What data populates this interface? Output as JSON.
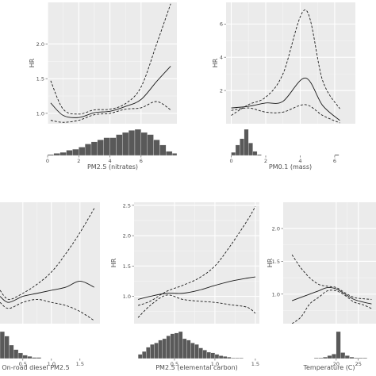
{
  "chart_data": [
    {
      "type": "line",
      "xlabel": "PM2.5 (nitrates)",
      "ylabel": "HR",
      "xlim": [
        0,
        8.3
      ],
      "ylim": [
        0.85,
        2.6
      ],
      "xticks": [
        {
          "v": 0,
          "label": "0"
        },
        {
          "v": 2,
          "label": "2"
        },
        {
          "v": 4,
          "label": "4"
        },
        {
          "v": 6,
          "label": "6"
        }
      ],
      "yticks": [
        {
          "v": 1.0,
          "label": "1.0"
        },
        {
          "v": 1.5,
          "label": "1.5"
        },
        {
          "v": 2.0,
          "label": "2.0"
        }
      ],
      "grid": true,
      "series": [
        {
          "style": "solid",
          "x": [
            0.2,
            1,
            2,
            3,
            4,
            5,
            6,
            7,
            7.9
          ],
          "y": [
            1.15,
            0.97,
            0.94,
            1.01,
            1.03,
            1.1,
            1.2,
            1.46,
            1.68
          ]
        },
        {
          "style": "dashed",
          "x": [
            0.2,
            1,
            2,
            3,
            4,
            5,
            6,
            7,
            7.9
          ],
          "y": [
            1.47,
            1.06,
            0.99,
            1.05,
            1.06,
            1.14,
            1.38,
            2.0,
            2.58
          ]
        },
        {
          "style": "dashed",
          "x": [
            0.2,
            1,
            2,
            3,
            4,
            5,
            6,
            7,
            7.9
          ],
          "y": [
            0.9,
            0.87,
            0.9,
            0.98,
            1.0,
            1.06,
            1.08,
            1.17,
            1.05
          ]
        }
      ],
      "histogram": {
        "x0": 0,
        "bin": 0.4,
        "counts": [
          1,
          2,
          3,
          5,
          6,
          8,
          11,
          13,
          15,
          17,
          17,
          20,
          22,
          24,
          25,
          22,
          20,
          15,
          10,
          4,
          2
        ]
      }
    },
    {
      "type": "line",
      "xlabel": "PM0.1 (mass)",
      "ylabel": "HR",
      "xlim": [
        -0.3,
        7.2
      ],
      "ylim": [
        0,
        7.3
      ],
      "xticks": [
        {
          "v": 0,
          "label": "0"
        },
        {
          "v": 2,
          "label": "2"
        },
        {
          "v": 4,
          "label": "4"
        },
        {
          "v": 6,
          "label": "6"
        }
      ],
      "yticks": [
        {
          "v": 2,
          "label": "2"
        },
        {
          "v": 4,
          "label": "4"
        },
        {
          "v": 6,
          "label": "6"
        }
      ],
      "grid": true,
      "series": [
        {
          "style": "solid",
          "x": [
            0,
            1,
            2,
            3,
            4.3,
            5.3,
            6.3
          ],
          "y": [
            0.95,
            1.05,
            1.25,
            1.35,
            2.75,
            1.1,
            0.2
          ]
        },
        {
          "style": "dashed",
          "x": [
            0,
            1,
            2,
            3,
            4.3,
            5.3,
            6.3
          ],
          "y": [
            0.5,
            1.15,
            1.6,
            3.0,
            6.85,
            2.6,
            0.9
          ]
        },
        {
          "style": "dashed",
          "x": [
            0,
            1,
            2,
            3,
            4.3,
            5.3,
            6.3
          ],
          "y": [
            0.8,
            0.95,
            0.7,
            0.7,
            1.15,
            0.5,
            0.05
          ]
        }
      ],
      "histogram": {
        "x0": 0,
        "bin": 0.25,
        "counts": [
          3,
          10,
          16,
          25,
          12,
          4,
          1,
          0,
          0,
          0,
          0,
          0,
          0,
          0,
          0,
          0,
          0,
          0,
          0,
          0,
          0,
          0,
          0,
          0,
          1
        ]
      }
    },
    {
      "type": "line",
      "xlabel": "On-road diesel PM2.5",
      "ylabel": "",
      "xlim": [
        0.1,
        1.85
      ],
      "ylim": [
        0.6,
        2.6
      ],
      "xticks": [
        {
          "v": 0.5,
          "label": "0.5"
        },
        {
          "v": 1.0,
          "label": "1.0"
        },
        {
          "v": 1.5,
          "label": "1.5"
        }
      ],
      "yticks": [],
      "grid": true,
      "series": [
        {
          "style": "solid",
          "x": [
            0.1,
            0.25,
            0.5,
            0.75,
            1.0,
            1.25,
            1.5,
            1.75
          ],
          "y": [
            1.05,
            0.95,
            1.05,
            1.1,
            1.15,
            1.2,
            1.3,
            1.2
          ]
        },
        {
          "style": "dashed",
          "x": [
            0.1,
            0.25,
            0.5,
            0.75,
            1.0,
            1.25,
            1.5,
            1.75
          ],
          "y": [
            1.15,
            1.0,
            1.1,
            1.25,
            1.45,
            1.75,
            2.1,
            2.5
          ]
        },
        {
          "style": "dashed",
          "x": [
            0.1,
            0.25,
            0.5,
            0.75,
            1.0,
            1.25,
            1.5,
            1.75
          ],
          "y": [
            0.95,
            0.85,
            0.95,
            1.0,
            0.95,
            0.9,
            0.8,
            0.65
          ]
        }
      ],
      "histogram": {
        "x0": 0.1,
        "bin": 0.08,
        "counts": [
          24,
          20,
          12,
          8,
          5,
          3,
          2,
          1,
          1
        ]
      }
    },
    {
      "type": "line",
      "xlabel": "PM2.5 (elemental carbon)",
      "ylabel": "HR",
      "xlim": [
        0,
        1.55
      ],
      "ylim": [
        0.55,
        2.55
      ],
      "xticks": [
        {
          "v": 0.5,
          "label": "0.5"
        },
        {
          "v": 1.0,
          "label": "1.0"
        },
        {
          "v": 1.5,
          "label": "1.5"
        }
      ],
      "yticks": [
        {
          "v": 0.5,
          "label": "0.5"
        },
        {
          "v": 1.0,
          "label": "1.0"
        },
        {
          "v": 1.5,
          "label": "1.5"
        },
        {
          "v": 2.0,
          "label": "2.0"
        },
        {
          "v": 2.5,
          "label": "2.5"
        }
      ],
      "grid": true,
      "series": [
        {
          "style": "solid",
          "x": [
            0.05,
            0.2,
            0.4,
            0.6,
            0.8,
            1.0,
            1.2,
            1.4,
            1.5
          ],
          "y": [
            0.95,
            1.0,
            1.05,
            1.05,
            1.1,
            1.18,
            1.25,
            1.3,
            1.32
          ]
        },
        {
          "style": "dashed",
          "x": [
            0.05,
            0.2,
            0.4,
            0.6,
            0.8,
            1.0,
            1.2,
            1.4,
            1.5
          ],
          "y": [
            0.85,
            0.92,
            1.08,
            1.18,
            1.3,
            1.5,
            1.85,
            2.25,
            2.48
          ]
        },
        {
          "style": "dashed",
          "x": [
            0.05,
            0.2,
            0.4,
            0.6,
            0.8,
            1.0,
            1.2,
            1.4,
            1.5
          ],
          "y": [
            0.65,
            0.85,
            1.02,
            0.95,
            0.92,
            0.9,
            0.86,
            0.82,
            0.72
          ]
        }
      ],
      "histogram": {
        "x0": 0.05,
        "bin": 0.05,
        "counts": [
          6,
          10,
          16,
          20,
          22,
          26,
          28,
          32,
          35,
          36,
          38,
          28,
          26,
          22,
          20,
          15,
          12,
          9,
          8,
          6,
          4,
          3,
          2,
          1,
          1,
          1
        ]
      }
    },
    {
      "type": "line",
      "xlabel": "Temperature (C)",
      "ylabel": "HR",
      "xlim": [
        8,
        29
      ],
      "ylim": [
        0.55,
        2.4
      ],
      "xticks": [
        {
          "v": 20,
          "label": "20"
        },
        {
          "v": 25,
          "label": "25"
        }
      ],
      "yticks": [
        {
          "v": 0.5,
          "label": "0.5"
        },
        {
          "v": 1.0,
          "label": "1.0"
        },
        {
          "v": 1.5,
          "label": "1.5"
        },
        {
          "v": 2.0,
          "label": "2.0"
        }
      ],
      "grid": true,
      "series": [
        {
          "style": "solid",
          "x": [
            10,
            12,
            14,
            16,
            18,
            20,
            22,
            24,
            26,
            28
          ],
          "y": [
            0.9,
            0.95,
            1.0,
            1.05,
            1.1,
            1.08,
            1.0,
            0.92,
            0.88,
            0.85
          ]
        },
        {
          "style": "dashed",
          "x": [
            10,
            12,
            14,
            16,
            18,
            20,
            22,
            24,
            26,
            28
          ],
          "y": [
            1.6,
            1.4,
            1.25,
            1.15,
            1.12,
            1.1,
            1.02,
            0.95,
            0.93,
            0.92
          ]
        },
        {
          "style": "dashed",
          "x": [
            10,
            12,
            14,
            16,
            18,
            20,
            22,
            24,
            26,
            28
          ],
          "y": [
            0.55,
            0.65,
            0.85,
            0.95,
            1.05,
            1.05,
            0.98,
            0.88,
            0.84,
            0.78
          ]
        }
      ],
      "histogram": {
        "x0": 15,
        "bin": 1,
        "counts": [
          1,
          1,
          2,
          4,
          6,
          36,
          8,
          4,
          2,
          1,
          1,
          1
        ]
      }
    }
  ]
}
